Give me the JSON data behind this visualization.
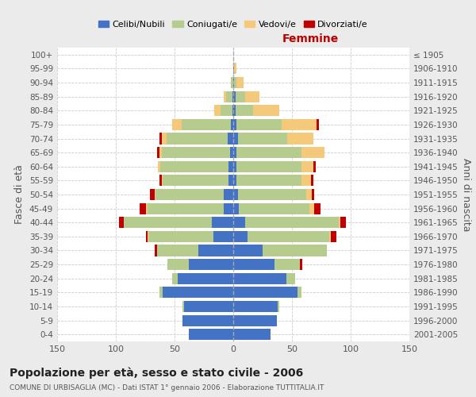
{
  "age_groups": [
    "0-4",
    "5-9",
    "10-14",
    "15-19",
    "20-24",
    "25-29",
    "30-34",
    "35-39",
    "40-44",
    "45-49",
    "50-54",
    "55-59",
    "60-64",
    "65-69",
    "70-74",
    "75-79",
    "80-84",
    "85-89",
    "90-94",
    "95-99",
    "100+"
  ],
  "birth_years": [
    "2001-2005",
    "1996-2000",
    "1991-1995",
    "1986-1990",
    "1981-1985",
    "1976-1980",
    "1971-1975",
    "1966-1970",
    "1961-1965",
    "1956-1960",
    "1951-1955",
    "1946-1950",
    "1941-1945",
    "1936-1940",
    "1931-1935",
    "1926-1930",
    "1921-1925",
    "1916-1920",
    "1911-1915",
    "1906-1910",
    "≤ 1905"
  ],
  "male": {
    "celibi": [
      38,
      43,
      42,
      60,
      47,
      38,
      30,
      17,
      18,
      8,
      8,
      4,
      4,
      3,
      5,
      2,
      1,
      1,
      0,
      0,
      0
    ],
    "coniugati": [
      0,
      0,
      1,
      3,
      5,
      18,
      35,
      55,
      75,
      65,
      58,
      56,
      58,
      58,
      52,
      42,
      10,
      5,
      2,
      0,
      0
    ],
    "vedovi": [
      0,
      0,
      0,
      0,
      0,
      0,
      0,
      1,
      0,
      1,
      1,
      1,
      2,
      2,
      4,
      8,
      5,
      2,
      0,
      0,
      0
    ],
    "divorziati": [
      0,
      0,
      0,
      0,
      0,
      0,
      2,
      1,
      4,
      6,
      4,
      2,
      0,
      2,
      2,
      0,
      0,
      0,
      0,
      0,
      0
    ]
  },
  "female": {
    "nubili": [
      32,
      37,
      38,
      55,
      45,
      35,
      25,
      12,
      10,
      5,
      4,
      3,
      3,
      3,
      4,
      3,
      2,
      2,
      1,
      1,
      0
    ],
    "coniugate": [
      0,
      0,
      1,
      3,
      8,
      22,
      55,
      70,
      80,
      60,
      58,
      55,
      55,
      55,
      42,
      38,
      15,
      8,
      2,
      0,
      0
    ],
    "vedove": [
      0,
      0,
      0,
      0,
      0,
      0,
      0,
      1,
      1,
      4,
      5,
      8,
      10,
      20,
      22,
      30,
      22,
      12,
      6,
      2,
      0
    ],
    "divorziate": [
      0,
      0,
      0,
      0,
      0,
      2,
      0,
      5,
      5,
      5,
      2,
      2,
      2,
      0,
      0,
      2,
      0,
      0,
      0,
      0,
      0
    ]
  },
  "colors": {
    "celibi": "#4472c4",
    "coniugati": "#b5cc8e",
    "vedovi": "#f5c97a",
    "divorziati": "#c00000"
  },
  "xlim": 150,
  "title": "Popolazione per età, sesso e stato civile - 2006",
  "subtitle": "COMUNE DI URBISAGLIA (MC) - Dati ISTAT 1° gennaio 2006 - Elaborazione TUTTITALIA.IT",
  "xlabel_right": "Femmine",
  "ylabel_left": "Fasce di età",
  "ylabel_right": "Anni di nascita",
  "bg_color": "#ebebeb",
  "plot_bg_color": "#ffffff",
  "legend_labels": [
    "Celibi/Nubili",
    "Coniugati/e",
    "Vedovi/e",
    "Divorziati/e"
  ]
}
